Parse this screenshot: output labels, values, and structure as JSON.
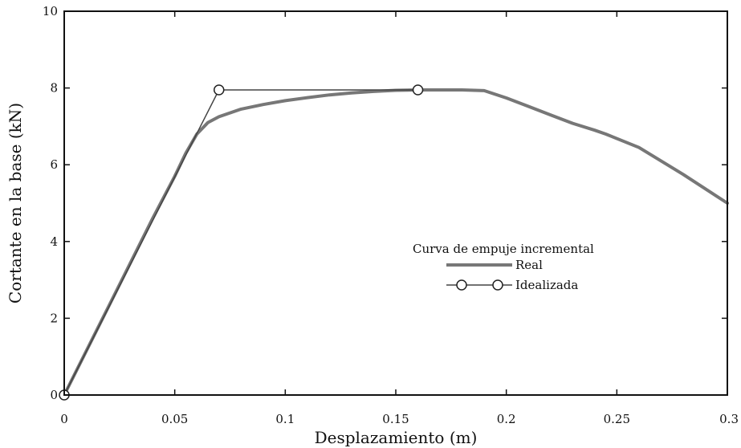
{
  "chart_data": {
    "type": "line",
    "title": "",
    "xlabel": "Desplazamiento (m)",
    "ylabel": "Cortante en la base (kN)",
    "xlim": [
      0,
      0.3
    ],
    "ylim": [
      0,
      10
    ],
    "x_ticks": [
      0,
      0.05,
      0.1,
      0.15,
      0.2,
      0.25,
      0.3
    ],
    "x_tick_labels": [
      "0",
      "0.05",
      "0.1",
      "0.15",
      "0.2",
      "0.25",
      "0.3"
    ],
    "y_ticks": [
      0,
      2,
      4,
      6,
      8,
      10
    ],
    "y_tick_labels": [
      "0",
      "2",
      "4",
      "6",
      "8",
      "10"
    ],
    "grid": false,
    "legend": {
      "title": "Curva de empuje incremental",
      "placement": "center-right"
    },
    "series": [
      {
        "name": "Real",
        "color": "#777777",
        "marker": "none",
        "x": [
          0,
          0.02,
          0.04,
          0.05,
          0.055,
          0.06,
          0.065,
          0.07,
          0.08,
          0.09,
          0.1,
          0.11,
          0.12,
          0.13,
          0.14,
          0.15,
          0.16,
          0.17,
          0.18,
          0.19,
          0.2,
          0.21,
          0.22,
          0.23,
          0.24,
          0.245,
          0.26,
          0.28,
          0.3
        ],
        "y": [
          0,
          2.3,
          4.6,
          5.7,
          6.3,
          6.8,
          7.1,
          7.25,
          7.45,
          7.57,
          7.67,
          7.75,
          7.82,
          7.87,
          7.91,
          7.94,
          7.95,
          7.95,
          7.95,
          7.93,
          7.74,
          7.52,
          7.3,
          7.08,
          6.9,
          6.8,
          6.45,
          5.75,
          5.0
        ]
      },
      {
        "name": "Idealizada",
        "color": "#444444",
        "marker": "open-circle",
        "x": [
          0,
          0.07,
          0.16
        ],
        "y": [
          0,
          7.95,
          7.95
        ]
      }
    ]
  }
}
